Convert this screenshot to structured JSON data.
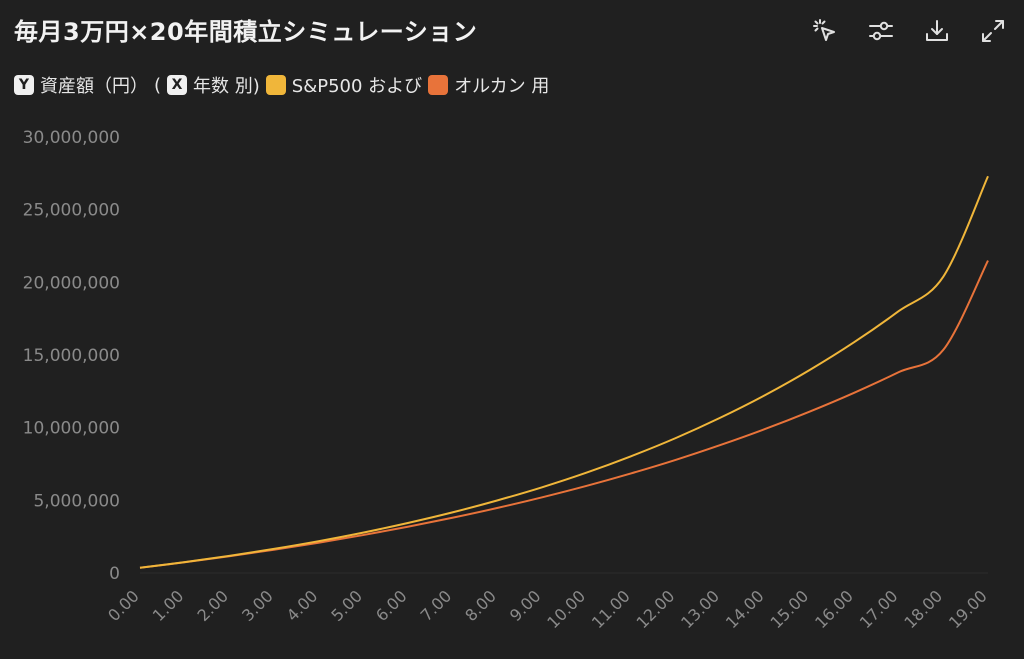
{
  "title": "毎月3万円×20年間積立シミュレーション",
  "toolbar": [
    {
      "name": "select-pointer-icon"
    },
    {
      "name": "sliders-icon"
    },
    {
      "name": "download-icon"
    },
    {
      "name": "expand-icon"
    }
  ],
  "legend": {
    "y_key": "Y",
    "y_label": "資産額（円）",
    "open_paren": "(",
    "x_key": "X",
    "x_label": "年数 別)",
    "series1_label": "S&P500 および",
    "series2_label": "オルカン 用"
  },
  "colors": {
    "sp500": "#F0B63A",
    "allcountry": "#E8733A",
    "background": "#202020"
  },
  "chart_data": {
    "type": "line",
    "x": [
      0,
      1,
      2,
      3,
      4,
      5,
      6,
      7,
      8,
      9,
      10,
      11,
      12,
      13,
      14,
      15,
      16,
      17,
      18,
      19
    ],
    "x_tick_labels": [
      "0.00",
      "1.00",
      "2.00",
      "3.00",
      "4.00",
      "5.00",
      "6.00",
      "7.00",
      "8.00",
      "9.00",
      "10.00",
      "11.00",
      "12.00",
      "13.00",
      "14.00",
      "15.00",
      "16.00",
      "17.00",
      "18.00",
      "19.00"
    ],
    "y_tick_labels": [
      "0",
      "5,000,000",
      "10,000,000",
      "15,000,000",
      "20,000,000",
      "25,000,000",
      "30,000,000"
    ],
    "ylim": [
      0,
      30000000
    ],
    "series": [
      {
        "name": "S&P500",
        "values": [
          360000,
          750000,
          1180000,
          1660000,
          2190000,
          2780000,
          3440000,
          4170000,
          4990000,
          5890000,
          6900000,
          8030000,
          9280000,
          10680000,
          12230000,
          13960000,
          15880000,
          18020000,
          20400000,
          27300000
        ]
      },
      {
        "name": "オルカン",
        "values": [
          360000,
          740000,
          1150000,
          1600000,
          2080000,
          2610000,
          3180000,
          3800000,
          4470000,
          5200000,
          5990000,
          6850000,
          7780000,
          8800000,
          9900000,
          11100000,
          12400000,
          13820000,
          15360000,
          21500000
        ]
      }
    ],
    "grid": false,
    "legend_position": "top-left"
  }
}
